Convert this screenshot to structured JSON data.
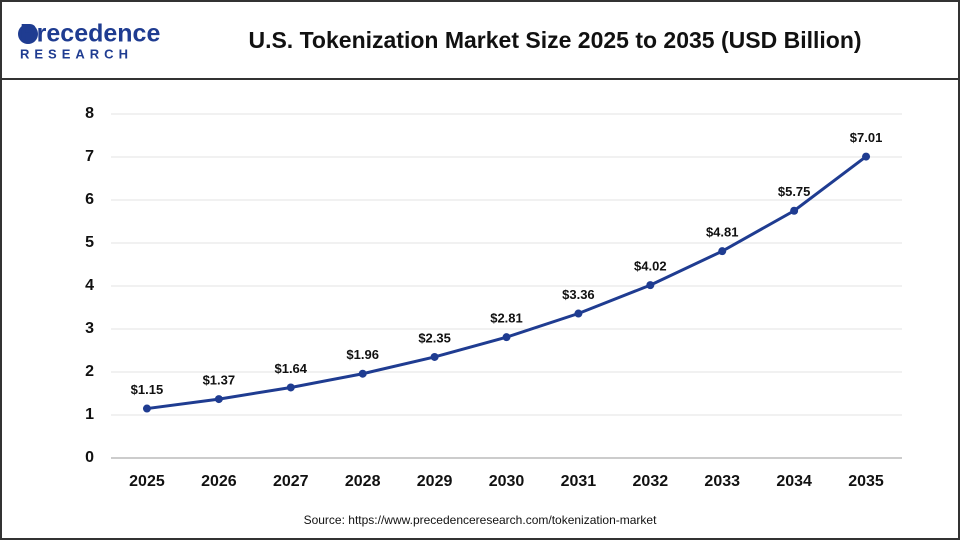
{
  "logo": {
    "name": "Precedence",
    "tagline": "RESEARCH"
  },
  "chart_data": {
    "type": "line",
    "title": "U.S. Tokenization Market Size 2025 to 2035 (USD Billion)",
    "source": "Source: https://www.precedenceresearch.com/tokenization-market",
    "categories": [
      "2025",
      "2026",
      "2027",
      "2028",
      "2029",
      "2030",
      "2031",
      "2032",
      "2033",
      "2034",
      "2035"
    ],
    "values": [
      1.15,
      1.37,
      1.64,
      1.96,
      2.35,
      2.81,
      3.36,
      4.02,
      4.81,
      5.75,
      7.01
    ],
    "value_labels": [
      "$1.15",
      "$1.37",
      "$1.64",
      "$1.96",
      "$2.35",
      "$2.81",
      "$3.36",
      "$4.02",
      "$4.81",
      "$5.75",
      "$7.01"
    ],
    "color": "#1f3c91",
    "ylim": [
      0,
      8
    ],
    "yticks": [
      0,
      1,
      2,
      3,
      4,
      5,
      6,
      7,
      8
    ],
    "grid": true
  }
}
